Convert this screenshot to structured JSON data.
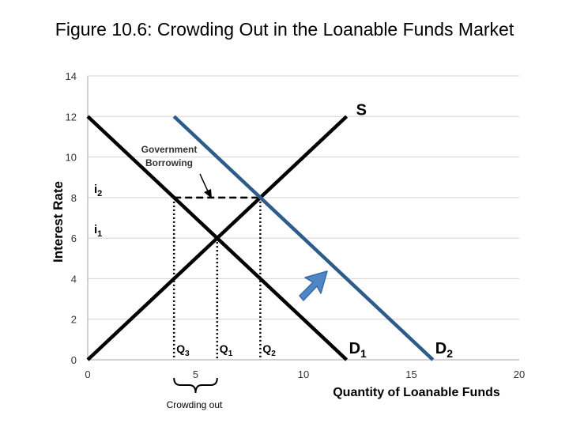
{
  "chart_data": {
    "type": "line",
    "title": "Figure 10.6: Crowding Out in the Loanable Funds Market",
    "xlabel": "Quantity of Loanable Funds",
    "ylabel": "Interest Rate",
    "xlim": [
      0,
      20
    ],
    "ylim": [
      0,
      14
    ],
    "x_ticks": [
      0,
      5,
      10,
      15,
      20
    ],
    "y_ticks": [
      0,
      2,
      4,
      6,
      8,
      10,
      12,
      14
    ],
    "grid": "horizontal",
    "series": [
      {
        "name": "S",
        "color": "#000000",
        "x": [
          0,
          12
        ],
        "y": [
          0,
          12
        ]
      },
      {
        "name": "D1",
        "color": "#000000",
        "x": [
          0,
          12
        ],
        "y": [
          12,
          0
        ]
      },
      {
        "name": "D2",
        "color": "#2e5c8a",
        "x": [
          4,
          16
        ],
        "y": [
          12,
          0
        ]
      }
    ],
    "rate_labels": [
      {
        "main": "i",
        "sub": "2",
        "y": 8
      },
      {
        "main": "i",
        "sub": "1",
        "y": 6
      }
    ],
    "quantity_labels": [
      {
        "main": "Q",
        "sub": "3",
        "x": 4
      },
      {
        "main": "Q",
        "sub": "1",
        "x": 6
      },
      {
        "main": "Q",
        "sub": "2",
        "x": 8
      }
    ],
    "annotations": {
      "government_borrowing": [
        "Government",
        "Borrowing"
      ],
      "crowding_out": "Crowding out",
      "shift_arrow_color": "#4f86c6"
    }
  }
}
